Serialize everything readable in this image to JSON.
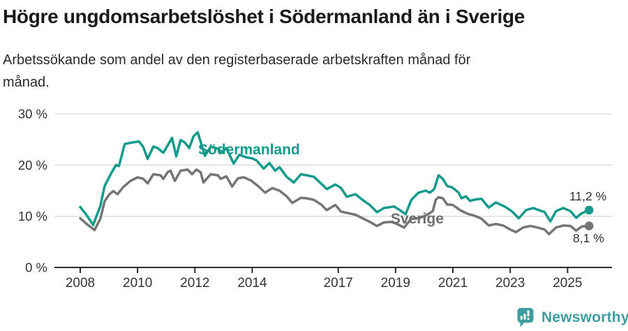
{
  "header": {
    "title": "Högre ungdomsarbetslöshet i Södermanland än i Sverige",
    "subtitle": "Arbetssökande som andel av den registerbaserade arbetskraften månad för\nmånad."
  },
  "chart_data": {
    "type": "line",
    "title": "Högre ungdomsarbetslöshet i Södermanland än i Sverige",
    "subtitle": "Arbetssökande som andel av den registerbaserade arbetskraften månad för månad.",
    "unit": "%",
    "grid": "horizontal",
    "legend_position": "inline-labels-on-lines",
    "x_range": [
      2008,
      2025.9
    ],
    "ylim": [
      0,
      30
    ],
    "y_ticks": [
      {
        "value": 30,
        "label": "30 %"
      },
      {
        "value": 20,
        "label": "20 %"
      },
      {
        "value": 10,
        "label": "10 %"
      },
      {
        "value": 0,
        "label": "0 %"
      }
    ],
    "x_ticks": [
      {
        "year": 2008,
        "label": "2008"
      },
      {
        "year": 2010,
        "label": "2010"
      },
      {
        "year": 2012,
        "label": "2012"
      },
      {
        "year": 2014,
        "label": "2014"
      },
      {
        "year": 2017,
        "label": "2017"
      },
      {
        "year": 2019,
        "label": "2019"
      },
      {
        "year": 2021,
        "label": "2021"
      },
      {
        "year": 2023,
        "label": "2023"
      },
      {
        "year": 2025,
        "label": "2025"
      }
    ],
    "series": [
      {
        "name": "Södermanland",
        "color": "#149a8b",
        "end_label": "11,2 %",
        "end_value": 11.2,
        "points": [
          [
            2008.0,
            11.8
          ],
          [
            2008.2,
            10.4
          ],
          [
            2008.45,
            8.3
          ],
          [
            2008.7,
            12.0
          ],
          [
            2008.85,
            15.9
          ],
          [
            2009.1,
            18.6
          ],
          [
            2009.25,
            20.0
          ],
          [
            2009.35,
            19.8
          ],
          [
            2009.55,
            24.1
          ],
          [
            2009.8,
            24.4
          ],
          [
            2010.05,
            24.6
          ],
          [
            2010.2,
            23.5
          ],
          [
            2010.35,
            21.2
          ],
          [
            2010.55,
            23.6
          ],
          [
            2010.7,
            23.3
          ],
          [
            2010.9,
            22.4
          ],
          [
            2011.1,
            24.3
          ],
          [
            2011.2,
            25.3
          ],
          [
            2011.35,
            21.7
          ],
          [
            2011.5,
            24.9
          ],
          [
            2011.65,
            24.4
          ],
          [
            2011.8,
            23.3
          ],
          [
            2011.95,
            25.6
          ],
          [
            2012.1,
            26.4
          ],
          [
            2012.25,
            23.6
          ],
          [
            2012.35,
            21.8
          ],
          [
            2012.55,
            23.6
          ],
          [
            2012.8,
            23.2
          ],
          [
            2012.95,
            22.5
          ],
          [
            2013.1,
            23.3
          ],
          [
            2013.35,
            20.3
          ],
          [
            2013.55,
            22.0
          ],
          [
            2013.8,
            21.5
          ],
          [
            2014.0,
            21.3
          ],
          [
            2014.15,
            20.9
          ],
          [
            2014.4,
            19.3
          ],
          [
            2014.6,
            20.4
          ],
          [
            2014.8,
            18.9
          ],
          [
            2014.95,
            19.6
          ],
          [
            2015.2,
            17.7
          ],
          [
            2015.45,
            16.6
          ],
          [
            2015.7,
            18.2
          ],
          [
            2015.9,
            18.0
          ],
          [
            2016.15,
            17.7
          ],
          [
            2016.4,
            16.4
          ],
          [
            2016.6,
            15.3
          ],
          [
            2016.9,
            16.2
          ],
          [
            2017.1,
            15.5
          ],
          [
            2017.3,
            13.8
          ],
          [
            2017.6,
            14.3
          ],
          [
            2017.85,
            13.2
          ],
          [
            2018.1,
            12.2
          ],
          [
            2018.35,
            10.8
          ],
          [
            2018.6,
            11.6
          ],
          [
            2018.95,
            11.9
          ],
          [
            2019.15,
            11.2
          ],
          [
            2019.35,
            10.4
          ],
          [
            2019.55,
            13.2
          ],
          [
            2019.8,
            14.6
          ],
          [
            2020.05,
            15.0
          ],
          [
            2020.2,
            14.6
          ],
          [
            2020.35,
            15.3
          ],
          [
            2020.5,
            18.0
          ],
          [
            2020.65,
            17.3
          ],
          [
            2020.8,
            15.9
          ],
          [
            2020.95,
            15.7
          ],
          [
            2021.05,
            15.3
          ],
          [
            2021.2,
            14.6
          ],
          [
            2021.3,
            13.5
          ],
          [
            2021.45,
            13.9
          ],
          [
            2021.6,
            13.0
          ],
          [
            2021.8,
            13.3
          ],
          [
            2022.0,
            13.4
          ],
          [
            2022.25,
            11.7
          ],
          [
            2022.5,
            12.7
          ],
          [
            2022.8,
            11.9
          ],
          [
            2023.05,
            11.0
          ],
          [
            2023.3,
            9.6
          ],
          [
            2023.55,
            11.2
          ],
          [
            2023.8,
            11.6
          ],
          [
            2024.0,
            11.2
          ],
          [
            2024.2,
            10.8
          ],
          [
            2024.4,
            9.0
          ],
          [
            2024.6,
            11.0
          ],
          [
            2024.85,
            11.6
          ],
          [
            2025.1,
            11.0
          ],
          [
            2025.3,
            9.7
          ],
          [
            2025.5,
            10.6
          ],
          [
            2025.75,
            11.2
          ]
        ]
      },
      {
        "name": "Sverige",
        "color": "#757575",
        "end_label": "8,1 %",
        "end_value": 8.1,
        "points": [
          [
            2008.0,
            9.6
          ],
          [
            2008.2,
            8.6
          ],
          [
            2008.5,
            7.3
          ],
          [
            2008.7,
            9.5
          ],
          [
            2008.85,
            12.9
          ],
          [
            2009.0,
            14.2
          ],
          [
            2009.15,
            14.9
          ],
          [
            2009.3,
            14.3
          ],
          [
            2009.5,
            15.7
          ],
          [
            2009.75,
            16.9
          ],
          [
            2010.0,
            17.6
          ],
          [
            2010.2,
            17.3
          ],
          [
            2010.35,
            16.4
          ],
          [
            2010.55,
            18.2
          ],
          [
            2010.8,
            18.0
          ],
          [
            2010.9,
            17.3
          ],
          [
            2011.05,
            18.6
          ],
          [
            2011.15,
            18.9
          ],
          [
            2011.3,
            16.9
          ],
          [
            2011.5,
            18.9
          ],
          [
            2011.75,
            19.1
          ],
          [
            2011.9,
            18.2
          ],
          [
            2012.05,
            19.1
          ],
          [
            2012.2,
            18.6
          ],
          [
            2012.3,
            16.6
          ],
          [
            2012.55,
            18.2
          ],
          [
            2012.8,
            18.0
          ],
          [
            2012.9,
            17.3
          ],
          [
            2013.1,
            17.8
          ],
          [
            2013.3,
            15.8
          ],
          [
            2013.5,
            17.4
          ],
          [
            2013.7,
            17.6
          ],
          [
            2013.95,
            17.0
          ],
          [
            2014.2,
            15.9
          ],
          [
            2014.45,
            14.6
          ],
          [
            2014.7,
            15.5
          ],
          [
            2014.95,
            15.0
          ],
          [
            2015.2,
            13.9
          ],
          [
            2015.4,
            12.6
          ],
          [
            2015.7,
            13.6
          ],
          [
            2015.9,
            13.5
          ],
          [
            2016.15,
            13.2
          ],
          [
            2016.4,
            12.3
          ],
          [
            2016.6,
            11.2
          ],
          [
            2016.9,
            12.2
          ],
          [
            2017.1,
            10.9
          ],
          [
            2017.35,
            10.6
          ],
          [
            2017.6,
            10.3
          ],
          [
            2017.85,
            9.6
          ],
          [
            2018.1,
            8.9
          ],
          [
            2018.35,
            8.1
          ],
          [
            2018.6,
            8.8
          ],
          [
            2018.85,
            8.9
          ],
          [
            2019.05,
            8.5
          ],
          [
            2019.3,
            7.8
          ],
          [
            2019.55,
            9.5
          ],
          [
            2019.8,
            9.6
          ],
          [
            2020.05,
            10.1
          ],
          [
            2020.3,
            11.0
          ],
          [
            2020.4,
            13.2
          ],
          [
            2020.5,
            13.7
          ],
          [
            2020.65,
            13.5
          ],
          [
            2020.8,
            12.3
          ],
          [
            2021.0,
            12.2
          ],
          [
            2021.25,
            11.2
          ],
          [
            2021.5,
            10.5
          ],
          [
            2021.75,
            10.1
          ],
          [
            2022.0,
            9.5
          ],
          [
            2022.25,
            8.2
          ],
          [
            2022.5,
            8.5
          ],
          [
            2022.75,
            8.2
          ],
          [
            2023.0,
            7.4
          ],
          [
            2023.2,
            6.9
          ],
          [
            2023.45,
            7.8
          ],
          [
            2023.7,
            8.1
          ],
          [
            2023.95,
            7.8
          ],
          [
            2024.2,
            7.4
          ],
          [
            2024.35,
            6.5
          ],
          [
            2024.6,
            7.8
          ],
          [
            2024.85,
            8.2
          ],
          [
            2025.1,
            8.1
          ],
          [
            2025.3,
            7.2
          ],
          [
            2025.5,
            8.0
          ],
          [
            2025.75,
            8.1
          ]
        ]
      }
    ]
  },
  "footer": {
    "brand": "Newsworthy",
    "brand_color": "#3f9da0"
  },
  "colors": {
    "axis_text": "#333333",
    "axis_line": "#2b2b2b",
    "gridline": "#d9d9d9"
  }
}
